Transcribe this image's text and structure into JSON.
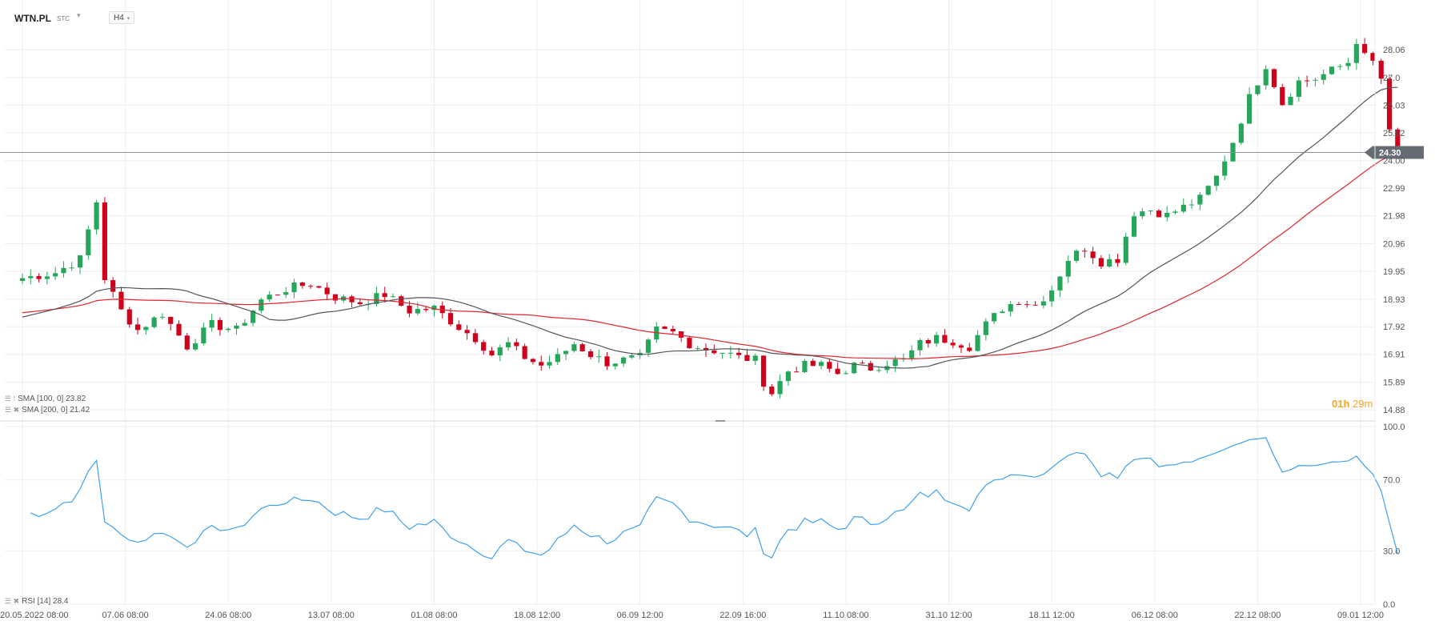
{
  "header": {
    "symbol": "WTN.PL",
    "source": "STC",
    "timeframe": "H4"
  },
  "indicators": {
    "sma100_label": "SMA [100, 0] 23.82",
    "sma200_label": "SMA [200, 0] 21.42",
    "rsi_label": "RSI [14] 28.4"
  },
  "countdown": {
    "hours": "01h",
    "minutes": "29m"
  },
  "colors": {
    "up": "#26a65b",
    "down": "#d0021b",
    "sma100": "#555555",
    "sma200": "#e0262f",
    "rsi": "#3ea0f0",
    "price_tag": "#666c73",
    "countdown": "#f5a623"
  },
  "chart_data": [
    {
      "type": "candlestick",
      "title": "WTN.PL",
      "timeframe": "H4",
      "ylim": [
        14.5,
        29.0
      ],
      "y_ticks": [
        "28.06",
        "27.0",
        "26.03",
        "25.02",
        "24.00",
        "22.99",
        "21.98",
        "20.96",
        "19.95",
        "18.93",
        "17.92",
        "16.91",
        "15.89",
        "14.88"
      ],
      "y_tick_values": [
        28.06,
        27.04,
        26.03,
        25.02,
        24.0,
        22.99,
        21.98,
        20.96,
        19.95,
        18.93,
        17.92,
        16.91,
        15.89,
        14.88
      ],
      "x_ticks": [
        "20.05.2022 08:00",
        "07.06 08:00",
        "24.06 08:00",
        "13.07 08:00",
        "01.08 08:00",
        "18.08 12:00",
        "06.09 12:00",
        "22.09 16:00",
        "11.10 08:00",
        "31.10 12:00",
        "18.11 12:00",
        "06.12 08:00",
        "22.12 08:00",
        "09.01 12:00"
      ],
      "x_tick_index": [
        0,
        12.5,
        25,
        37.5,
        50,
        62.5,
        75,
        87.5,
        100,
        112.5,
        125,
        137.5,
        150,
        162.5
      ],
      "current_price": "24.30",
      "current_price_value": 24.3,
      "price_anchors": [
        [
          0,
          19.7
        ],
        [
          4,
          19.9
        ],
        [
          7,
          20.4
        ],
        [
          9,
          22.5
        ],
        [
          10,
          19.7
        ],
        [
          12,
          18.5
        ],
        [
          14,
          17.8
        ],
        [
          17,
          18.4
        ],
        [
          20,
          17.2
        ],
        [
          23,
          18.0
        ],
        [
          26,
          17.8
        ],
        [
          29,
          18.9
        ],
        [
          32,
          19.3
        ],
        [
          35,
          19.5
        ],
        [
          38,
          19.0
        ],
        [
          41,
          18.8
        ],
        [
          44,
          19.1
        ],
        [
          47,
          18.5
        ],
        [
          50,
          18.6
        ],
        [
          53,
          17.9
        ],
        [
          55,
          17.5
        ],
        [
          57,
          16.9
        ],
        [
          59,
          17.3
        ],
        [
          61,
          16.8
        ],
        [
          63,
          16.5
        ],
        [
          65,
          16.8
        ],
        [
          67,
          17.3
        ],
        [
          69,
          16.9
        ],
        [
          71,
          16.6
        ],
        [
          73,
          16.7
        ],
        [
          75,
          16.8
        ],
        [
          77,
          17.8
        ],
        [
          79,
          17.7
        ],
        [
          81,
          17.3
        ],
        [
          83,
          17.1
        ],
        [
          85,
          17.0
        ],
        [
          87,
          16.8
        ],
        [
          89,
          16.7
        ],
        [
          90,
          15.9
        ],
        [
          91,
          15.5
        ],
        [
          93,
          16.3
        ],
        [
          95,
          16.5
        ],
        [
          97,
          16.5
        ],
        [
          99,
          16.2
        ],
        [
          101,
          16.5
        ],
        [
          103,
          16.4
        ],
        [
          105,
          16.6
        ],
        [
          107,
          16.7
        ],
        [
          109,
          17.3
        ],
        [
          111,
          17.5
        ],
        [
          113,
          17.4
        ],
        [
          115,
          17.2
        ],
        [
          117,
          18.0
        ],
        [
          119,
          18.6
        ],
        [
          121,
          18.9
        ],
        [
          123,
          18.7
        ],
        [
          125,
          19.3
        ],
        [
          127,
          20.4
        ],
        [
          129,
          20.8
        ],
        [
          131,
          20.3
        ],
        [
          133,
          20.4
        ],
        [
          135,
          22.1
        ],
        [
          137,
          22.2
        ],
        [
          139,
          22.0
        ],
        [
          141,
          22.3
        ],
        [
          143,
          22.6
        ],
        [
          145,
          23.4
        ],
        [
          147,
          24.7
        ],
        [
          149,
          26.3
        ],
        [
          151,
          27.5
        ],
        [
          152,
          26.8
        ],
        [
          153,
          26.1
        ],
        [
          155,
          26.9
        ],
        [
          157,
          27.0
        ],
        [
          159,
          27.3
        ],
        [
          161,
          27.6
        ],
        [
          162,
          28.4
        ],
        [
          163,
          27.8
        ],
        [
          164,
          27.6
        ],
        [
          165,
          27.0
        ],
        [
          166,
          25.0
        ],
        [
          167,
          24.3
        ]
      ]
    },
    {
      "type": "line",
      "title": "RSI [14]",
      "ylim": [
        0.0,
        100.0
      ],
      "y_ticks": [
        "100.0",
        "70.0",
        "30.0",
        "0.0"
      ],
      "y_tick_values": [
        100,
        70,
        30,
        0
      ],
      "last_value": 28.4
    }
  ]
}
